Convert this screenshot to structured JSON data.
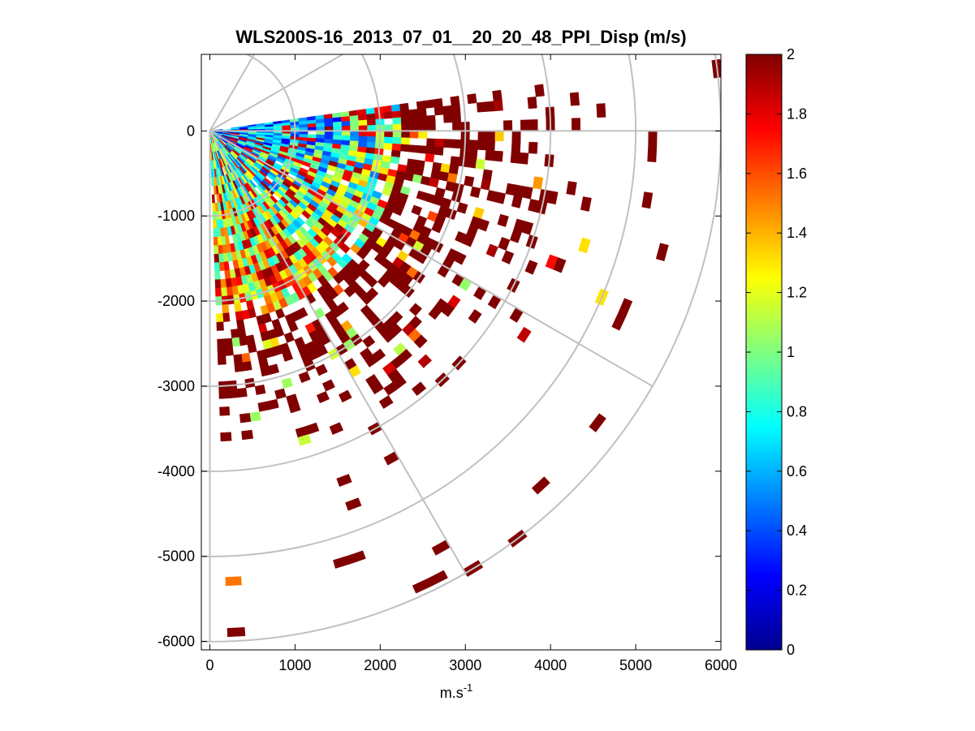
{
  "chart_data": {
    "type": "heatmap",
    "subtype": "ppi-polar-sector",
    "title": "WLS200S-16_2013_07_01__20_20_48_PPI_Disp (m/s)",
    "xlabel_base": "m.s",
    "xlabel_exp": "-1",
    "ylabel": "",
    "xlim": [
      -100,
      6000
    ],
    "ylim": [
      -6100,
      900
    ],
    "xticks": [
      0,
      1000,
      2000,
      3000,
      4000,
      5000,
      6000
    ],
    "xtick_labels": [
      "0",
      "1000",
      "2000",
      "3000",
      "4000",
      "5000",
      "6000"
    ],
    "yticks": [
      0,
      -1000,
      -2000,
      -3000,
      -4000,
      -5000,
      -6000
    ],
    "ytick_labels": [
      "0",
      "-1000",
      "-2000",
      "-3000",
      "-4000",
      "-5000",
      "-6000"
    ],
    "polar_grid": {
      "range_rings_m": [
        1000,
        2000,
        3000,
        4000,
        5000,
        6000
      ],
      "spokes_deg": [
        0,
        30,
        60,
        -30,
        -60,
        -90
      ]
    },
    "sector": {
      "azimuth_from_deg": 8,
      "azimuth_to_deg": -88,
      "range_from_m": 0,
      "range_to_m": 6000,
      "range_gate_m": 100
    },
    "colorbar": {
      "colormap": "jet",
      "range": [
        0,
        2
      ],
      "ticks": [
        0,
        0.2,
        0.4,
        0.6,
        0.8,
        1,
        1.2,
        1.4,
        1.6,
        1.8,
        2
      ],
      "tick_labels": [
        "0",
        "0.2",
        "0.4",
        "0.6",
        "0.8",
        "1",
        "1.2",
        "1.4",
        "1.6",
        "1.8",
        "2"
      ]
    },
    "value_structure": "Near range (< ~2500 m) mostly 0.3-1.2 m/s (blue-cyan-green-yellow); beyond ~2500 m values saturate at 2 (dark red); returns become sparse with increasing range and toward the south."
  }
}
